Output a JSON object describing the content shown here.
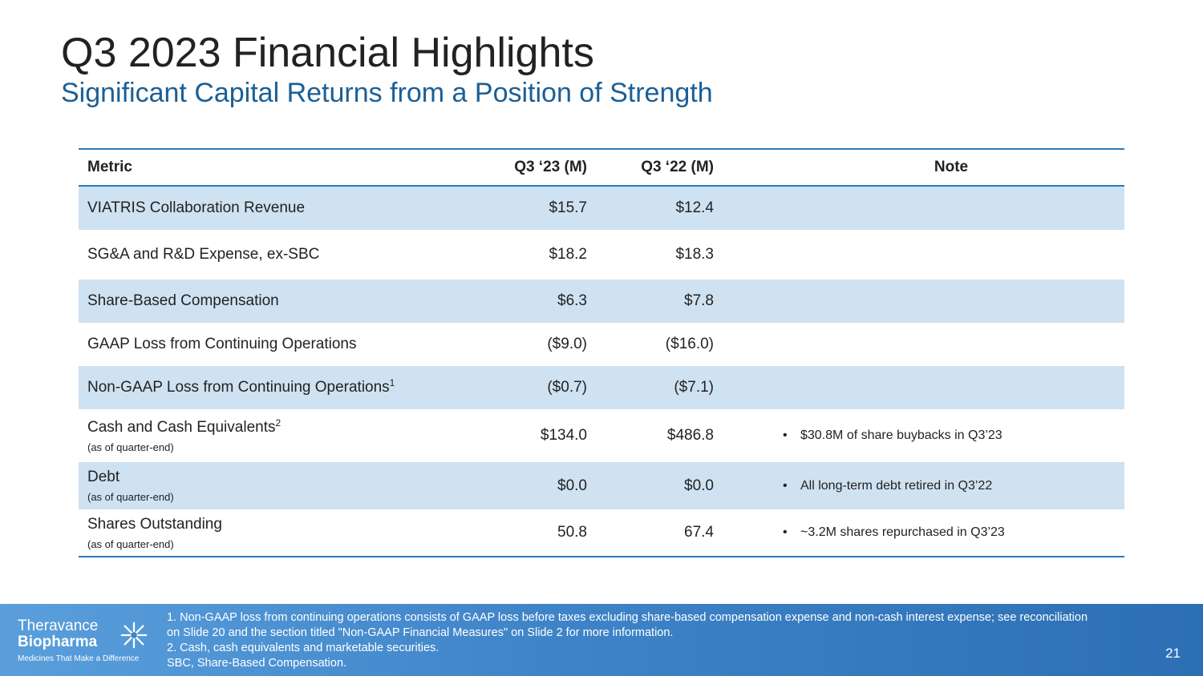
{
  "slide": {
    "title": "Q3 2023 Financial Highlights",
    "subtitle": "Significant Capital Returns from a Position of Strength",
    "page_number": "21"
  },
  "table": {
    "headers": {
      "metric": "Metric",
      "q23": "Q3 ‘23 (M)",
      "q22": "Q3 ‘22 (M)",
      "note": "Note"
    },
    "rows": [
      {
        "metric": "VIATRIS Collaboration Revenue",
        "sup": "",
        "sub": "",
        "q23": "$15.7",
        "q22": "$12.4",
        "note": ""
      },
      {
        "metric": "SG&A and R&D Expense, ex-SBC",
        "sup": "",
        "sub": "",
        "q23": "$18.2",
        "q22": "$18.3",
        "note": ""
      },
      {
        "metric": "Share-Based Compensation",
        "sup": "",
        "sub": "",
        "q23": "$6.3",
        "q22": "$7.8",
        "note": ""
      },
      {
        "metric": "GAAP Loss from Continuing Operations",
        "sup": "",
        "sub": "",
        "q23": "($9.0)",
        "q22": "($16.0)",
        "note": ""
      },
      {
        "metric": "Non-GAAP Loss from Continuing Operations",
        "sup": "1",
        "sub": "",
        "q23": "($0.7)",
        "q22": "($7.1)",
        "note": ""
      },
      {
        "metric": "Cash and Cash Equivalents",
        "sup": "2",
        "sub": "(as of quarter-end)",
        "q23": "$134.0",
        "q22": "$486.8",
        "note": "$30.8M of share buybacks in Q3’23"
      },
      {
        "metric": "Debt",
        "sup": "",
        "sub": "(as of quarter-end)",
        "q23": "$0.0",
        "q22": "$0.0",
        "note": "All long-term debt retired in Q3’22"
      },
      {
        "metric": "Shares Outstanding",
        "sup": "",
        "sub": "(as of quarter-end)",
        "q23": "50.8",
        "q22": "67.4",
        "note": "~3.2M shares repurchased in Q3’23"
      }
    ],
    "bullet": "•"
  },
  "footer": {
    "logo_line1": "Theravance",
    "logo_line2": "Biopharma",
    "logo_tagline": "Medicines That Make a Difference",
    "notes": [
      "1. Non-GAAP loss from continuing operations consists of GAAP loss before taxes excluding share-based compensation expense and non-cash interest expense; see reconciliation",
      "on Slide 20 and the section titled \"Non-GAAP Financial Measures\" on Slide 2 for more information.",
      "2. Cash, cash equivalents and marketable securities.",
      "SBC, Share-Based Compensation."
    ]
  },
  "colors": {
    "accent": "#2e78b8",
    "row_shade": "#cfe2f1",
    "subtitle": "#1b5f96",
    "footer": "#3f84c8"
  }
}
